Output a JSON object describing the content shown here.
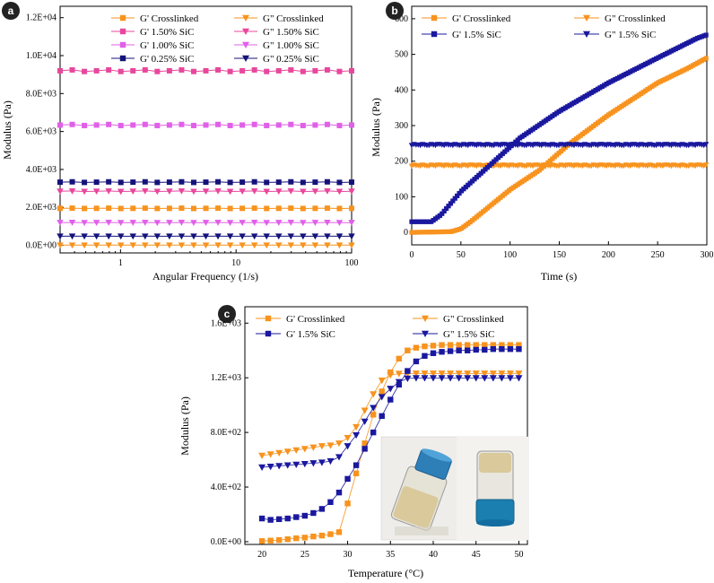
{
  "chart_data": [
    {
      "panel": "a",
      "type": "line",
      "xscale": "log",
      "xlim": [
        0.3,
        100
      ],
      "ylim": [
        -400,
        12600
      ],
      "xlabel": "Angular Frequency (1/s)",
      "ylabel": "Modulus (Pa)",
      "xticks": [
        {
          "v": 1,
          "label": "1"
        },
        {
          "v": 10,
          "label": "10"
        },
        {
          "v": 100,
          "label": "100"
        }
      ],
      "yticks": [
        {
          "v": 0,
          "label": "0.0E+00"
        },
        {
          "v": 2000,
          "label": "2.0E+03"
        },
        {
          "v": 4000,
          "label": "4.0E+03"
        },
        {
          "v": 6000,
          "label": "6.0E+03"
        },
        {
          "v": 8000,
          "label": "8.0E+03"
        },
        {
          "v": 10000,
          "label": "1.0E+04"
        },
        {
          "v": 12000,
          "label": "1.2E+04"
        }
      ],
      "legend_position": "top",
      "series": [
        {
          "name": "G' Crosslinked",
          "color": "#F7931E",
          "marker": "square",
          "value": 1950
        },
        {
          "name": "G\" Crosslinked",
          "color": "#F7931E",
          "marker": "tri-down",
          "value": 10
        },
        {
          "name": "G' 1.50% SiC",
          "color": "#E8479C",
          "marker": "square",
          "value": 9200
        },
        {
          "name": "G\" 1.50% SiC",
          "color": "#E8479C",
          "marker": "tri-down",
          "value": 2850
        },
        {
          "name": "G' 1.00% SiC",
          "color": "#E060E8",
          "marker": "square",
          "value": 6340
        },
        {
          "name": "G\" 1.00% SiC",
          "color": "#E060E8",
          "marker": "tri-down",
          "value": 1200
        },
        {
          "name": "G' 0.25% SiC",
          "color": "#14137A",
          "marker": "square",
          "value": 3330
        },
        {
          "name": "G\" 0.25% SiC",
          "color": "#14137A",
          "marker": "tri-down",
          "value": 480
        }
      ]
    },
    {
      "panel": "b",
      "type": "line",
      "xlim": [
        0,
        300
      ],
      "ylim": [
        -35,
        635
      ],
      "xlabel": "Time (s)",
      "ylabel": "Modulus (Pa)",
      "xticks": [
        {
          "v": 0,
          "label": "0"
        },
        {
          "v": 50,
          "label": "50"
        },
        {
          "v": 100,
          "label": "100"
        },
        {
          "v": 150,
          "label": "150"
        },
        {
          "v": 200,
          "label": "200"
        },
        {
          "v": 250,
          "label": "250"
        },
        {
          "v": 300,
          "label": "300"
        }
      ],
      "yticks": [
        {
          "v": 0,
          "label": "0"
        },
        {
          "v": 100,
          "label": "100"
        },
        {
          "v": 200,
          "label": "200"
        },
        {
          "v": 300,
          "label": "300"
        },
        {
          "v": 400,
          "label": "400"
        },
        {
          "v": 500,
          "label": "500"
        },
        {
          "v": 600,
          "label": "600"
        }
      ],
      "legend_position": "top",
      "series": [
        {
          "name": "G' Crosslinked",
          "color": "#F7931E",
          "marker": "square",
          "x": [
            0,
            40,
            50,
            60,
            80,
            100,
            130,
            160,
            200,
            250,
            280,
            300
          ],
          "y": [
            0,
            2,
            10,
            30,
            75,
            120,
            175,
            248,
            330,
            420,
            460,
            490
          ]
        },
        {
          "name": "G\" Crosslinked",
          "color": "#F7931E",
          "marker": "tri-down",
          "x": [
            0,
            300
          ],
          "y": [
            188,
            188
          ]
        },
        {
          "name": "G' 1.5% SiC",
          "color": "#1A189E",
          "marker": "square",
          "x": [
            0,
            20,
            30,
            50,
            80,
            110,
            150,
            200,
            250,
            290,
            300
          ],
          "y": [
            30,
            30,
            50,
            115,
            190,
            265,
            340,
            420,
            490,
            545,
            555
          ]
        },
        {
          "name": "G\" 1.5% SiC",
          "color": "#1A189E",
          "marker": "tri-down",
          "x": [
            0,
            300
          ],
          "y": [
            246,
            246
          ]
        }
      ]
    },
    {
      "panel": "c",
      "type": "line",
      "xlim": [
        18,
        51
      ],
      "ylim": [
        -20,
        1720
      ],
      "xlabel": "Temperature (°C)",
      "ylabel": "Modulus (Pa)",
      "xticks": [
        {
          "v": 20,
          "label": "20"
        },
        {
          "v": 25,
          "label": "25"
        },
        {
          "v": 30,
          "label": "30"
        },
        {
          "v": 35,
          "label": "35"
        },
        {
          "v": 40,
          "label": "40"
        },
        {
          "v": 45,
          "label": "45"
        },
        {
          "v": 50,
          "label": "50"
        }
      ],
      "yticks": [
        {
          "v": 0,
          "label": "0.0E+00"
        },
        {
          "v": 400,
          "label": "4.0E+02"
        },
        {
          "v": 800,
          "label": "8.0E+02"
        },
        {
          "v": 1200,
          "label": "1.2E+03"
        },
        {
          "v": 1600,
          "label": "1.6E+03"
        }
      ],
      "legend_position": "top",
      "series": [
        {
          "name": "G' Crosslinked",
          "color": "#F7931E",
          "marker": "square",
          "x": [
            20,
            21,
            22,
            23,
            24,
            25,
            26,
            27,
            28,
            29,
            30,
            31,
            32,
            33,
            34,
            35,
            36,
            37,
            38,
            39,
            40,
            41,
            42,
            43,
            44,
            45,
            46,
            47,
            48,
            49,
            50
          ],
          "y": [
            5,
            8,
            12,
            18,
            25,
            30,
            38,
            45,
            55,
            70,
            280,
            500,
            720,
            930,
            1100,
            1240,
            1340,
            1400,
            1420,
            1430,
            1435,
            1440,
            1440,
            1440,
            1440,
            1440,
            1440,
            1440,
            1440,
            1440,
            1440
          ]
        },
        {
          "name": "G\" Crosslinked",
          "color": "#F7931E",
          "marker": "tri-down",
          "x": [
            20,
            21,
            22,
            23,
            24,
            25,
            26,
            27,
            28,
            29,
            30,
            31,
            32,
            33,
            34,
            35,
            36,
            37,
            38,
            39,
            40,
            41,
            42,
            43,
            44,
            45,
            46,
            47,
            48,
            49,
            50
          ],
          "y": [
            630,
            640,
            650,
            660,
            670,
            680,
            690,
            700,
            705,
            720,
            760,
            840,
            960,
            1080,
            1180,
            1220,
            1230,
            1232,
            1232,
            1232,
            1232,
            1232,
            1232,
            1232,
            1232,
            1232,
            1232,
            1232,
            1232,
            1232,
            1232
          ]
        },
        {
          "name": "G' 1.5% SiC",
          "color": "#1A189E",
          "marker": "square",
          "x": [
            20,
            21,
            22,
            23,
            24,
            25,
            26,
            27,
            28,
            29,
            30,
            31,
            32,
            33,
            34,
            35,
            36,
            37,
            38,
            39,
            40,
            41,
            42,
            43,
            44,
            45,
            46,
            47,
            48,
            49,
            50
          ],
          "y": [
            170,
            160,
            165,
            170,
            180,
            190,
            210,
            240,
            290,
            360,
            460,
            560,
            680,
            800,
            920,
            1040,
            1150,
            1250,
            1320,
            1360,
            1380,
            1390,
            1395,
            1400,
            1400,
            1405,
            1405,
            1410,
            1410,
            1410,
            1410
          ]
        },
        {
          "name": "G\" 1.5% SiC",
          "color": "#1A189E",
          "marker": "tri-down",
          "x": [
            20,
            21,
            22,
            23,
            24,
            25,
            26,
            27,
            28,
            29,
            30,
            31,
            32,
            33,
            34,
            35,
            36,
            37,
            38,
            39,
            40,
            41,
            42,
            43,
            44,
            45,
            46,
            47,
            48,
            49,
            50
          ],
          "y": [
            545,
            550,
            555,
            560,
            565,
            570,
            575,
            580,
            590,
            620,
            700,
            780,
            880,
            980,
            1060,
            1120,
            1170,
            1195,
            1198,
            1198,
            1198,
            1198,
            1198,
            1198,
            1198,
            1198,
            1198,
            1198,
            1198,
            1198,
            1198
          ]
        }
      ]
    }
  ],
  "inset_photo": {
    "bg": "#EEEDEA",
    "cap1": "#2E7FB8",
    "cap2": "#3C91C4",
    "liquid": "#D9C99B",
    "blue_liquid": "#1B7FB0"
  }
}
